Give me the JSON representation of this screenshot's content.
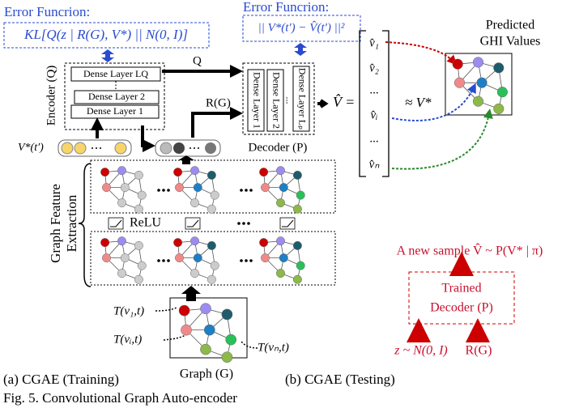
{
  "labels": {
    "error_function_left": "Error Funcrion:",
    "kl_formula": "KL[Q(z | R(G), V*) || N(0, I)]",
    "error_function_right": "Error Funcrion:",
    "mse_formula": "|| V*(t′) − V̂(t′) ||²",
    "encoder": "Encoder (Q)",
    "encoder_layers": [
      "Dense Layer LQ",
      "⋮",
      "Dense Layer 2",
      "Dense Layer 1"
    ],
    "q_arrow": "Q",
    "rg_arrow": "R(G)",
    "decoder_layers": [
      "Dense Layer 1",
      "Dense Layer 2",
      "...",
      "Dense Layer Lₚ"
    ],
    "decoder": "Decoder (P)",
    "v_star_input": "V*(t′)",
    "graph_feature_extraction": [
      "Graph Feature",
      "Extraction"
    ],
    "relu": "ReLU",
    "v_hat_eq": "V̂ =",
    "vector_entries": [
      "v̂₁",
      "v̂₂",
      "...",
      "v̂ᵢ",
      "...",
      "v̂ₙ"
    ],
    "approx": "≈ V*",
    "predicted": [
      "Predicted",
      "GHI Values"
    ],
    "t_labels": [
      "T(v₁,t)",
      "T(vᵢ,t)",
      "T(vₙ,t)"
    ],
    "graph": "Graph (G)",
    "new_sample": "A new sample V̂ ~ P(V* | π)",
    "trained_decoder": [
      "Trained",
      "Decoder (P)"
    ],
    "z_dist": "z ~ N(0, I)",
    "rg_test": "R(G)",
    "caption_a": "(a) CGAE (Training)",
    "caption_b": "(b) CGAE (Testing)",
    "figure_caption": "Fig. 5. Convolutional Graph Auto-encoder"
  }
}
